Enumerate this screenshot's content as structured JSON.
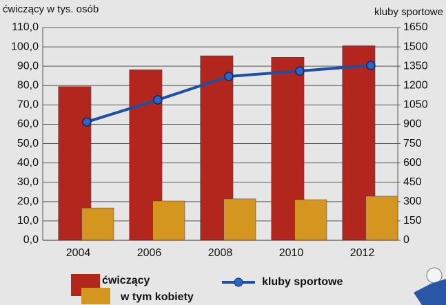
{
  "chart_data": {
    "type": "bar",
    "ylabel": "ćwiczący w tys. osób",
    "y2label": "kluby sportowe",
    "categories": [
      "2004",
      "2006",
      "2008",
      "2010",
      "2012"
    ],
    "series": [
      {
        "name": "ćwiczący",
        "color": "#b3261e",
        "values": [
          79.5,
          88.2,
          95.4,
          94.6,
          100.6
        ]
      },
      {
        "name": "w tym kobiety",
        "color": "#d4961f",
        "values": [
          16.7,
          20.3,
          21.4,
          21.0,
          22.8
        ]
      },
      {
        "name": "kluby sportowe",
        "type": "line",
        "axis": "y2",
        "color": "#1f4fa0",
        "values": [
          918,
          1089,
          1271,
          1313,
          1356
        ]
      }
    ],
    "ylim": [
      0,
      110
    ],
    "yticks": [
      {
        "value": 0,
        "label": "0,0"
      },
      {
        "value": 10,
        "label": "10,0"
      },
      {
        "value": 20,
        "label": "20,0"
      },
      {
        "value": 30,
        "label": "30,0"
      },
      {
        "value": 40,
        "label": "40,0"
      },
      {
        "value": 50,
        "label": "50,0"
      },
      {
        "value": 60,
        "label": "60,0"
      },
      {
        "value": 70,
        "label": "70,0"
      },
      {
        "value": 80,
        "label": "80,0"
      },
      {
        "value": 90,
        "label": "90,0"
      },
      {
        "value": 100,
        "label": "100,0"
      },
      {
        "value": 110,
        "label": "110,0"
      }
    ],
    "y2lim": [
      0,
      1650
    ],
    "y2ticks": [
      0,
      150,
      300,
      450,
      600,
      750,
      900,
      1050,
      1200,
      1350,
      1500,
      1650
    ],
    "grid": true
  }
}
